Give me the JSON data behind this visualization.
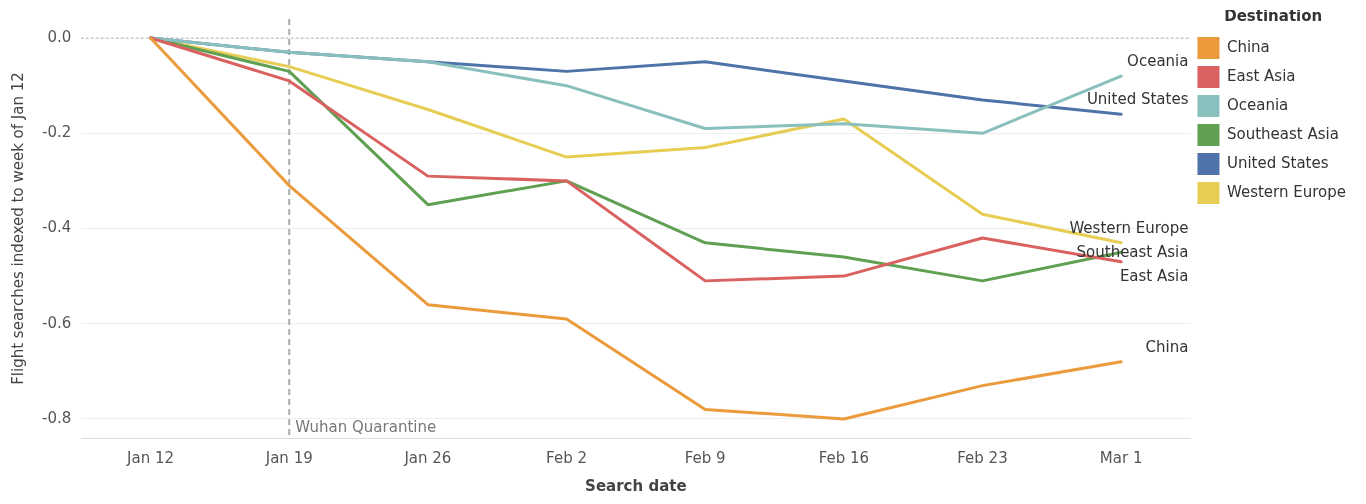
{
  "chart_data": {
    "type": "line",
    "xlabel": "Search date",
    "ylabel": "Flight searches indexed to week of Jan 12",
    "legend_title": "Destination",
    "legend": "top right",
    "grid": "y",
    "marker": "none",
    "line_style": "solid",
    "categories": [
      "Jan 12",
      "Jan 19",
      "Jan 26",
      "Feb 2",
      "Feb 9",
      "Feb 16",
      "Feb 23",
      "Mar 1"
    ],
    "ylim": [
      -0.84,
      0.04
    ],
    "yticks": [
      {
        "value": 0,
        "label": "0.0"
      },
      {
        "value": -0.2,
        "label": "-0.2"
      },
      {
        "value": -0.4,
        "label": "-0.4"
      },
      {
        "value": -0.6,
        "label": "-0.6"
      },
      {
        "value": -0.8,
        "label": "-0.8"
      }
    ],
    "ref_lines": [
      {
        "axis": "y",
        "value": 0,
        "color": "#aaaaaa",
        "line_style": "dotted"
      },
      {
        "axis": "x",
        "value": "Jan 19",
        "label": "Wuhan Quarantine",
        "color": "#aaaaaa",
        "line_style": "dashed"
      }
    ],
    "series": [
      {
        "name": "China",
        "color": "#eb9a3c",
        "values": [
          0,
          -0.31,
          -0.56,
          -0.59,
          -0.78,
          -0.8,
          -0.73,
          -0.68
        ]
      },
      {
        "name": "East Asia",
        "color": "#d9615f",
        "values": [
          0,
          -0.09,
          -0.29,
          -0.3,
          -0.51,
          -0.5,
          -0.42,
          -0.47
        ]
      },
      {
        "name": "Oceania",
        "color": "#89c0be",
        "values": [
          0,
          -0.03,
          -0.05,
          -0.1,
          -0.19,
          -0.18,
          -0.2,
          -0.08
        ]
      },
      {
        "name": "Southeast Asia",
        "color": "#5fa052",
        "values": [
          0,
          -0.07,
          -0.35,
          -0.3,
          -0.43,
          -0.46,
          -0.51,
          -0.45
        ]
      },
      {
        "name": "United States",
        "color": "#4e73a8",
        "values": [
          0,
          -0.03,
          -0.05,
          -0.07,
          -0.05,
          -0.09,
          -0.13,
          -0.16
        ]
      },
      {
        "name": "Western Europe",
        "color": "#e8cd55",
        "values": [
          0,
          -0.06,
          -0.15,
          -0.25,
          -0.23,
          -0.17,
          -0.37,
          -0.43
        ]
      }
    ]
  }
}
